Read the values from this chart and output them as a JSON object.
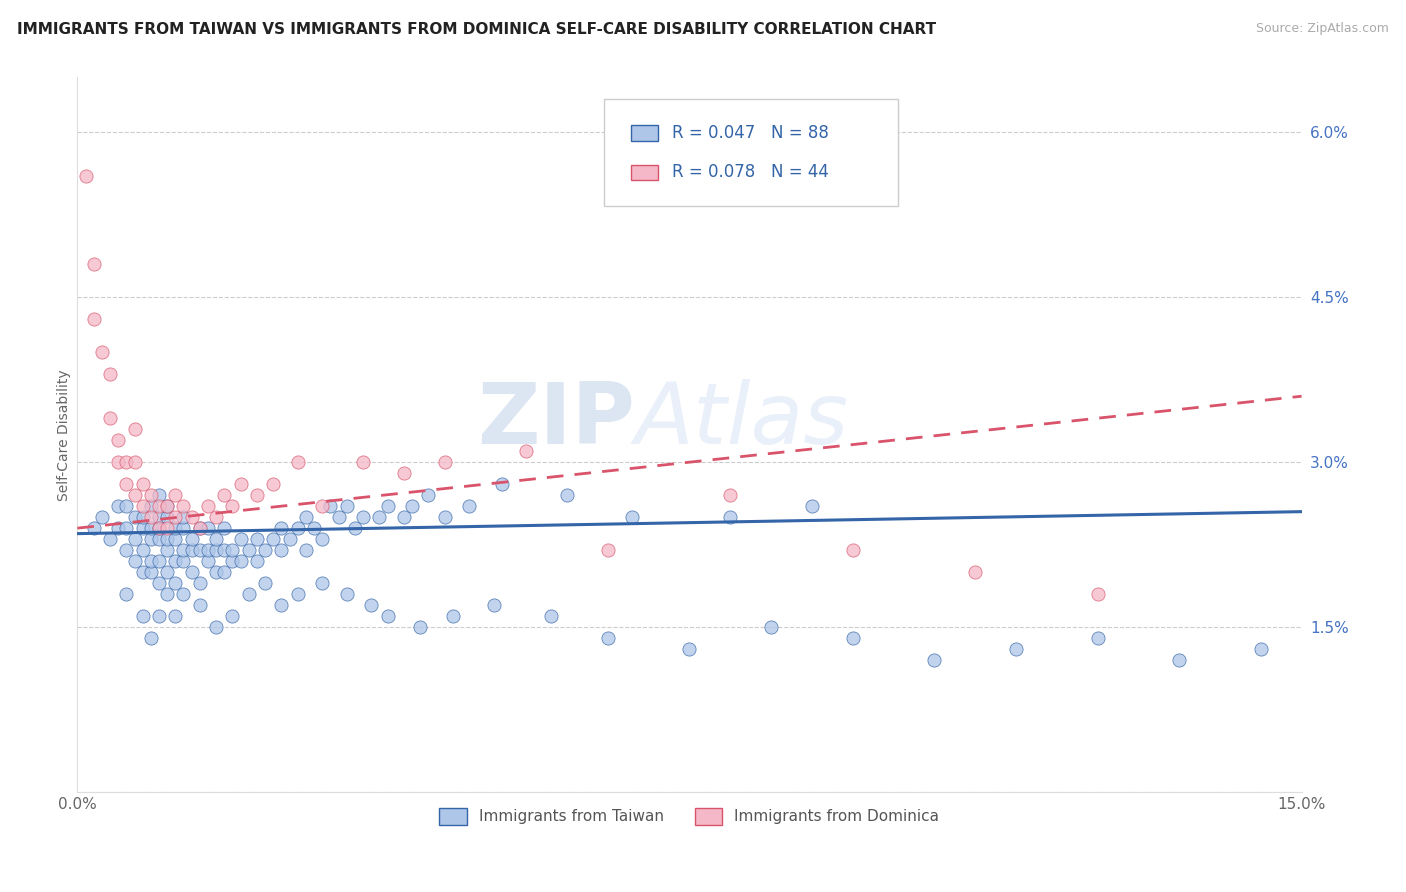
{
  "title": "IMMIGRANTS FROM TAIWAN VS IMMIGRANTS FROM DOMINICA SELF-CARE DISABILITY CORRELATION CHART",
  "source_text": "Source: ZipAtlas.com",
  "ylabel": "Self-Care Disability",
  "xlim": [
    0.0,
    0.15
  ],
  "ylim": [
    0.0,
    0.065
  ],
  "ytick_positions": [
    0.0,
    0.015,
    0.03,
    0.045,
    0.06
  ],
  "ytick_labels": [
    "",
    "1.5%",
    "3.0%",
    "4.5%",
    "6.0%"
  ],
  "taiwan_color": "#aec6e8",
  "taiwan_line_color": "#3465a8",
  "dominica_color": "#f4b8c8",
  "dominica_line_color": "#d9546a",
  "taiwan_R": "0.047",
  "taiwan_N": "88",
  "dominica_R": "0.078",
  "dominica_N": "44",
  "taiwan_line_x": [
    0.0,
    0.15
  ],
  "taiwan_line_y": [
    0.0235,
    0.0255
  ],
  "dominica_line_x": [
    0.0,
    0.15
  ],
  "dominica_line_y": [
    0.024,
    0.036
  ],
  "taiwan_scatter_x": [
    0.002,
    0.003,
    0.004,
    0.005,
    0.005,
    0.006,
    0.006,
    0.006,
    0.007,
    0.007,
    0.007,
    0.008,
    0.008,
    0.008,
    0.008,
    0.009,
    0.009,
    0.009,
    0.009,
    0.009,
    0.01,
    0.01,
    0.01,
    0.01,
    0.01,
    0.01,
    0.011,
    0.011,
    0.011,
    0.011,
    0.011,
    0.012,
    0.012,
    0.012,
    0.012,
    0.013,
    0.013,
    0.013,
    0.013,
    0.014,
    0.014,
    0.014,
    0.015,
    0.015,
    0.015,
    0.016,
    0.016,
    0.016,
    0.017,
    0.017,
    0.017,
    0.018,
    0.018,
    0.018,
    0.019,
    0.019,
    0.02,
    0.02,
    0.021,
    0.022,
    0.022,
    0.023,
    0.024,
    0.025,
    0.025,
    0.026,
    0.027,
    0.028,
    0.028,
    0.029,
    0.03,
    0.031,
    0.032,
    0.033,
    0.034,
    0.035,
    0.037,
    0.038,
    0.04,
    0.041,
    0.043,
    0.045,
    0.048,
    0.052,
    0.06,
    0.068,
    0.08,
    0.09
  ],
  "taiwan_scatter_y": [
    0.024,
    0.025,
    0.023,
    0.024,
    0.026,
    0.022,
    0.024,
    0.026,
    0.021,
    0.023,
    0.025,
    0.02,
    0.022,
    0.024,
    0.025,
    0.02,
    0.021,
    0.023,
    0.024,
    0.026,
    0.019,
    0.021,
    0.023,
    0.024,
    0.025,
    0.027,
    0.02,
    0.022,
    0.023,
    0.025,
    0.026,
    0.019,
    0.021,
    0.023,
    0.024,
    0.021,
    0.022,
    0.024,
    0.025,
    0.02,
    0.022,
    0.023,
    0.019,
    0.022,
    0.024,
    0.021,
    0.022,
    0.024,
    0.02,
    0.022,
    0.023,
    0.02,
    0.022,
    0.024,
    0.021,
    0.022,
    0.021,
    0.023,
    0.022,
    0.021,
    0.023,
    0.022,
    0.023,
    0.022,
    0.024,
    0.023,
    0.024,
    0.022,
    0.025,
    0.024,
    0.023,
    0.026,
    0.025,
    0.026,
    0.024,
    0.025,
    0.025,
    0.026,
    0.025,
    0.026,
    0.027,
    0.025,
    0.026,
    0.028,
    0.027,
    0.025,
    0.025,
    0.026
  ],
  "taiwan_scatter_x_extra": [
    0.006,
    0.008,
    0.009,
    0.01,
    0.011,
    0.012,
    0.013,
    0.015,
    0.017,
    0.019,
    0.021,
    0.023,
    0.025,
    0.027,
    0.03,
    0.033,
    0.036,
    0.038,
    0.042,
    0.046,
    0.051,
    0.058,
    0.065,
    0.075,
    0.085,
    0.095,
    0.105,
    0.115,
    0.125,
    0.135,
    0.145
  ],
  "taiwan_scatter_y_extra": [
    0.018,
    0.016,
    0.014,
    0.016,
    0.018,
    0.016,
    0.018,
    0.017,
    0.015,
    0.016,
    0.018,
    0.019,
    0.017,
    0.018,
    0.019,
    0.018,
    0.017,
    0.016,
    0.015,
    0.016,
    0.017,
    0.016,
    0.014,
    0.013,
    0.015,
    0.014,
    0.012,
    0.013,
    0.014,
    0.012,
    0.013
  ],
  "dominica_scatter_x": [
    0.001,
    0.002,
    0.002,
    0.003,
    0.004,
    0.004,
    0.005,
    0.005,
    0.006,
    0.006,
    0.007,
    0.007,
    0.007,
    0.008,
    0.008,
    0.009,
    0.009,
    0.01,
    0.01,
    0.011,
    0.011,
    0.012,
    0.012,
    0.013,
    0.014,
    0.015,
    0.016,
    0.017,
    0.018,
    0.019,
    0.02,
    0.022,
    0.024,
    0.027,
    0.03,
    0.035,
    0.04,
    0.045,
    0.055,
    0.065,
    0.08,
    0.095,
    0.11,
    0.125
  ],
  "dominica_scatter_y": [
    0.056,
    0.043,
    0.048,
    0.04,
    0.034,
    0.038,
    0.03,
    0.032,
    0.028,
    0.03,
    0.027,
    0.03,
    0.033,
    0.026,
    0.028,
    0.025,
    0.027,
    0.024,
    0.026,
    0.024,
    0.026,
    0.025,
    0.027,
    0.026,
    0.025,
    0.024,
    0.026,
    0.025,
    0.027,
    0.026,
    0.028,
    0.027,
    0.028,
    0.03,
    0.026,
    0.03,
    0.029,
    0.03,
    0.031,
    0.022,
    0.027,
    0.022,
    0.02,
    0.018
  ]
}
